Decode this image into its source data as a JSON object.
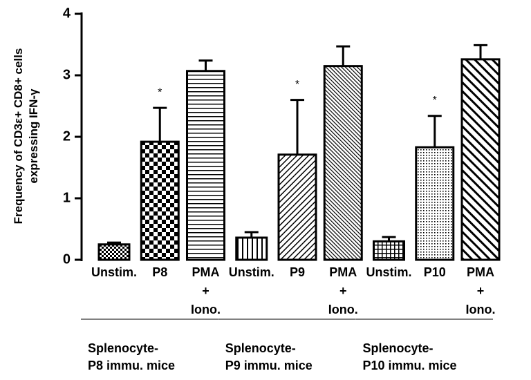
{
  "chart_data": {
    "type": "bar",
    "y_label": "Frequency of CD3ε+ CD8+ cells\nexpressing IFN-γ",
    "categories": [
      "Unstim.",
      "P8",
      "PMA\n+\nIono.",
      "Unstim.",
      "P9",
      "PMA\n+\nIono.",
      "Unstim.",
      "P10",
      "PMA\n+\nIono."
    ],
    "groups": [
      "Splenocyte-\nP8 immu. mice",
      "Splenocyte-\nP9 immu. mice",
      "Splenocyte-\nP10 immu. mice"
    ],
    "values": [
      0.25,
      1.92,
      3.07,
      0.36,
      1.71,
      3.15,
      0.3,
      1.83,
      3.26
    ],
    "errors": [
      0.03,
      0.55,
      0.17,
      0.09,
      0.89,
      0.32,
      0.07,
      0.51,
      0.23
    ],
    "patterns": [
      "checker-small",
      "checker",
      "hlines",
      "vlines",
      "diag",
      "diag-fine",
      "grid",
      "dots",
      "diag-back"
    ],
    "annotations": [
      {
        "index": 1,
        "text": "*"
      },
      {
        "index": 4,
        "text": "*"
      },
      {
        "index": 7,
        "text": "*"
      }
    ],
    "color": "#000000",
    "ylim": [
      0,
      4
    ],
    "yticks": [
      0,
      1,
      2,
      3,
      4
    ]
  }
}
